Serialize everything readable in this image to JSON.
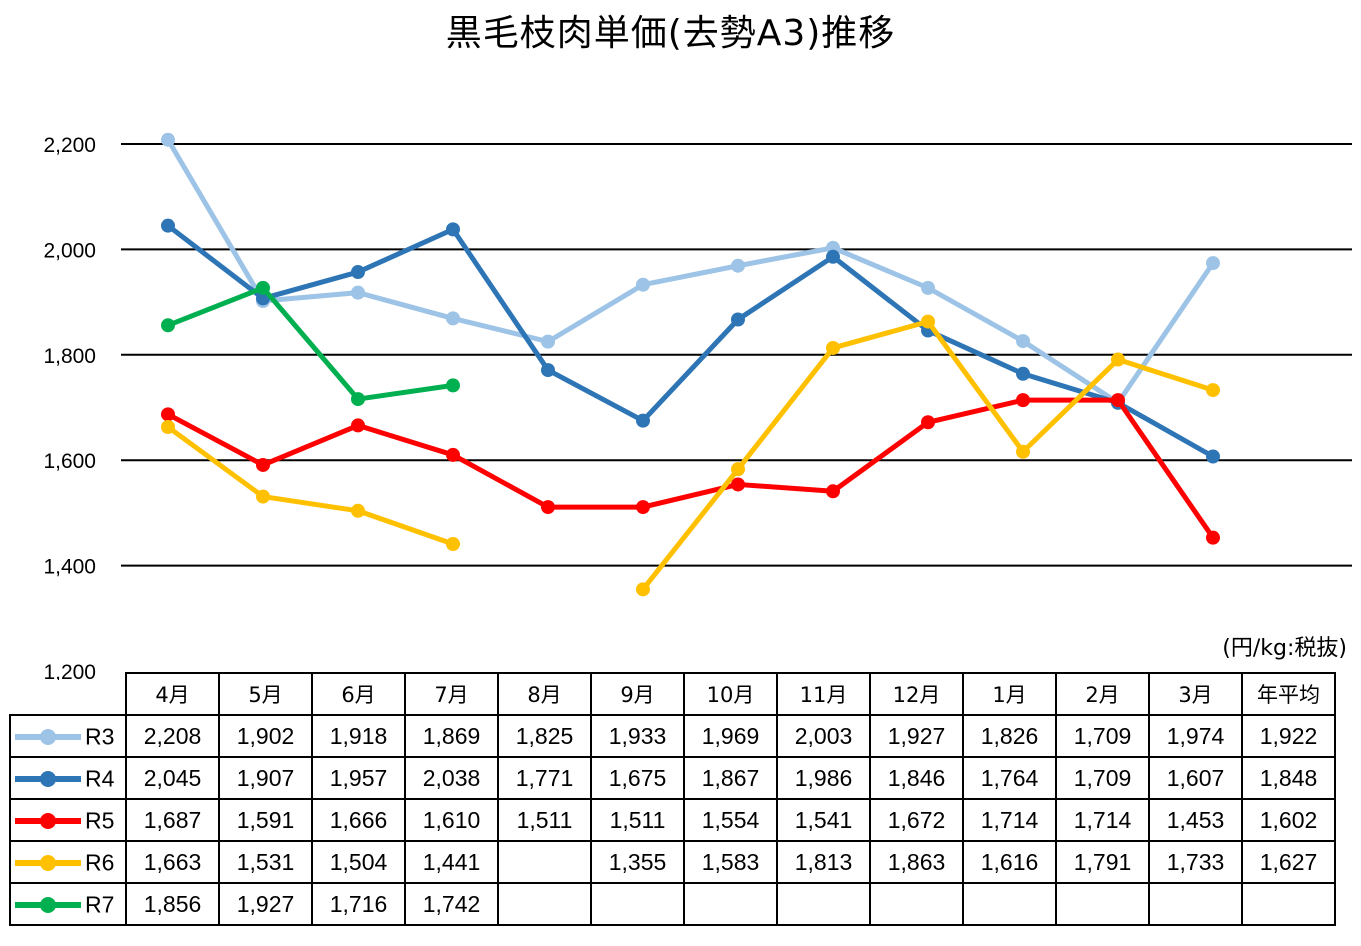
{
  "chart_data": {
    "type": "line",
    "title": "黒毛枝肉単価(去勢A3)推移",
    "unit_note": "(円/kg:税抜)",
    "categories": [
      "4月",
      "5月",
      "6月",
      "7月",
      "8月",
      "9月",
      "10月",
      "11月",
      "12月",
      "1月",
      "2月",
      "3月"
    ],
    "avg_header": "年平均",
    "ylim": [
      1200,
      2200
    ],
    "yticks": [
      "1,200",
      "1,400",
      "1,600",
      "1,800",
      "2,000",
      "2,200"
    ],
    "grid": true,
    "legend": "table-left",
    "series": [
      {
        "name": "R3",
        "color": "#9DC3E6",
        "values": [
          2208,
          1902,
          1918,
          1869,
          1825,
          1933,
          1969,
          2003,
          1927,
          1826,
          1709,
          1974
        ],
        "labels": [
          "2,208",
          "1,902",
          "1,918",
          "1,869",
          "1,825",
          "1,933",
          "1,969",
          "2,003",
          "1,927",
          "1,826",
          "1,709",
          "1,974"
        ],
        "average": "1,922"
      },
      {
        "name": "R4",
        "color": "#2E75B6",
        "values": [
          2045,
          1907,
          1957,
          2038,
          1771,
          1675,
          1867,
          1986,
          1846,
          1764,
          1709,
          1607
        ],
        "labels": [
          "2,045",
          "1,907",
          "1,957",
          "2,038",
          "1,771",
          "1,675",
          "1,867",
          "1,986",
          "1,846",
          "1,764",
          "1,709",
          "1,607"
        ],
        "average": "1,848"
      },
      {
        "name": "R5",
        "color": "#FF0000",
        "values": [
          1687,
          1591,
          1666,
          1610,
          1511,
          1511,
          1554,
          1541,
          1672,
          1714,
          1714,
          1453
        ],
        "labels": [
          "1,687",
          "1,591",
          "1,666",
          "1,610",
          "1,511",
          "1,511",
          "1,554",
          "1,541",
          "1,672",
          "1,714",
          "1,714",
          "1,453"
        ],
        "average": "1,602"
      },
      {
        "name": "R6",
        "color": "#FFC000",
        "values": [
          1663,
          1531,
          1504,
          1441,
          null,
          1355,
          1583,
          1813,
          1863,
          1616,
          1791,
          1733
        ],
        "labels": [
          "1,663",
          "1,531",
          "1,504",
          "1,441",
          "",
          "1,355",
          "1,583",
          "1,813",
          "1,863",
          "1,616",
          "1,791",
          "1,733"
        ],
        "average": "1,627"
      },
      {
        "name": "R7",
        "color": "#00B050",
        "values": [
          1856,
          1927,
          1716,
          1742,
          null,
          null,
          null,
          null,
          null,
          null,
          null,
          null
        ],
        "labels": [
          "1,856",
          "1,927",
          "1,716",
          "1,742",
          "",
          "",
          "",
          "",
          "",
          "",
          "",
          ""
        ],
        "average": ""
      }
    ]
  }
}
